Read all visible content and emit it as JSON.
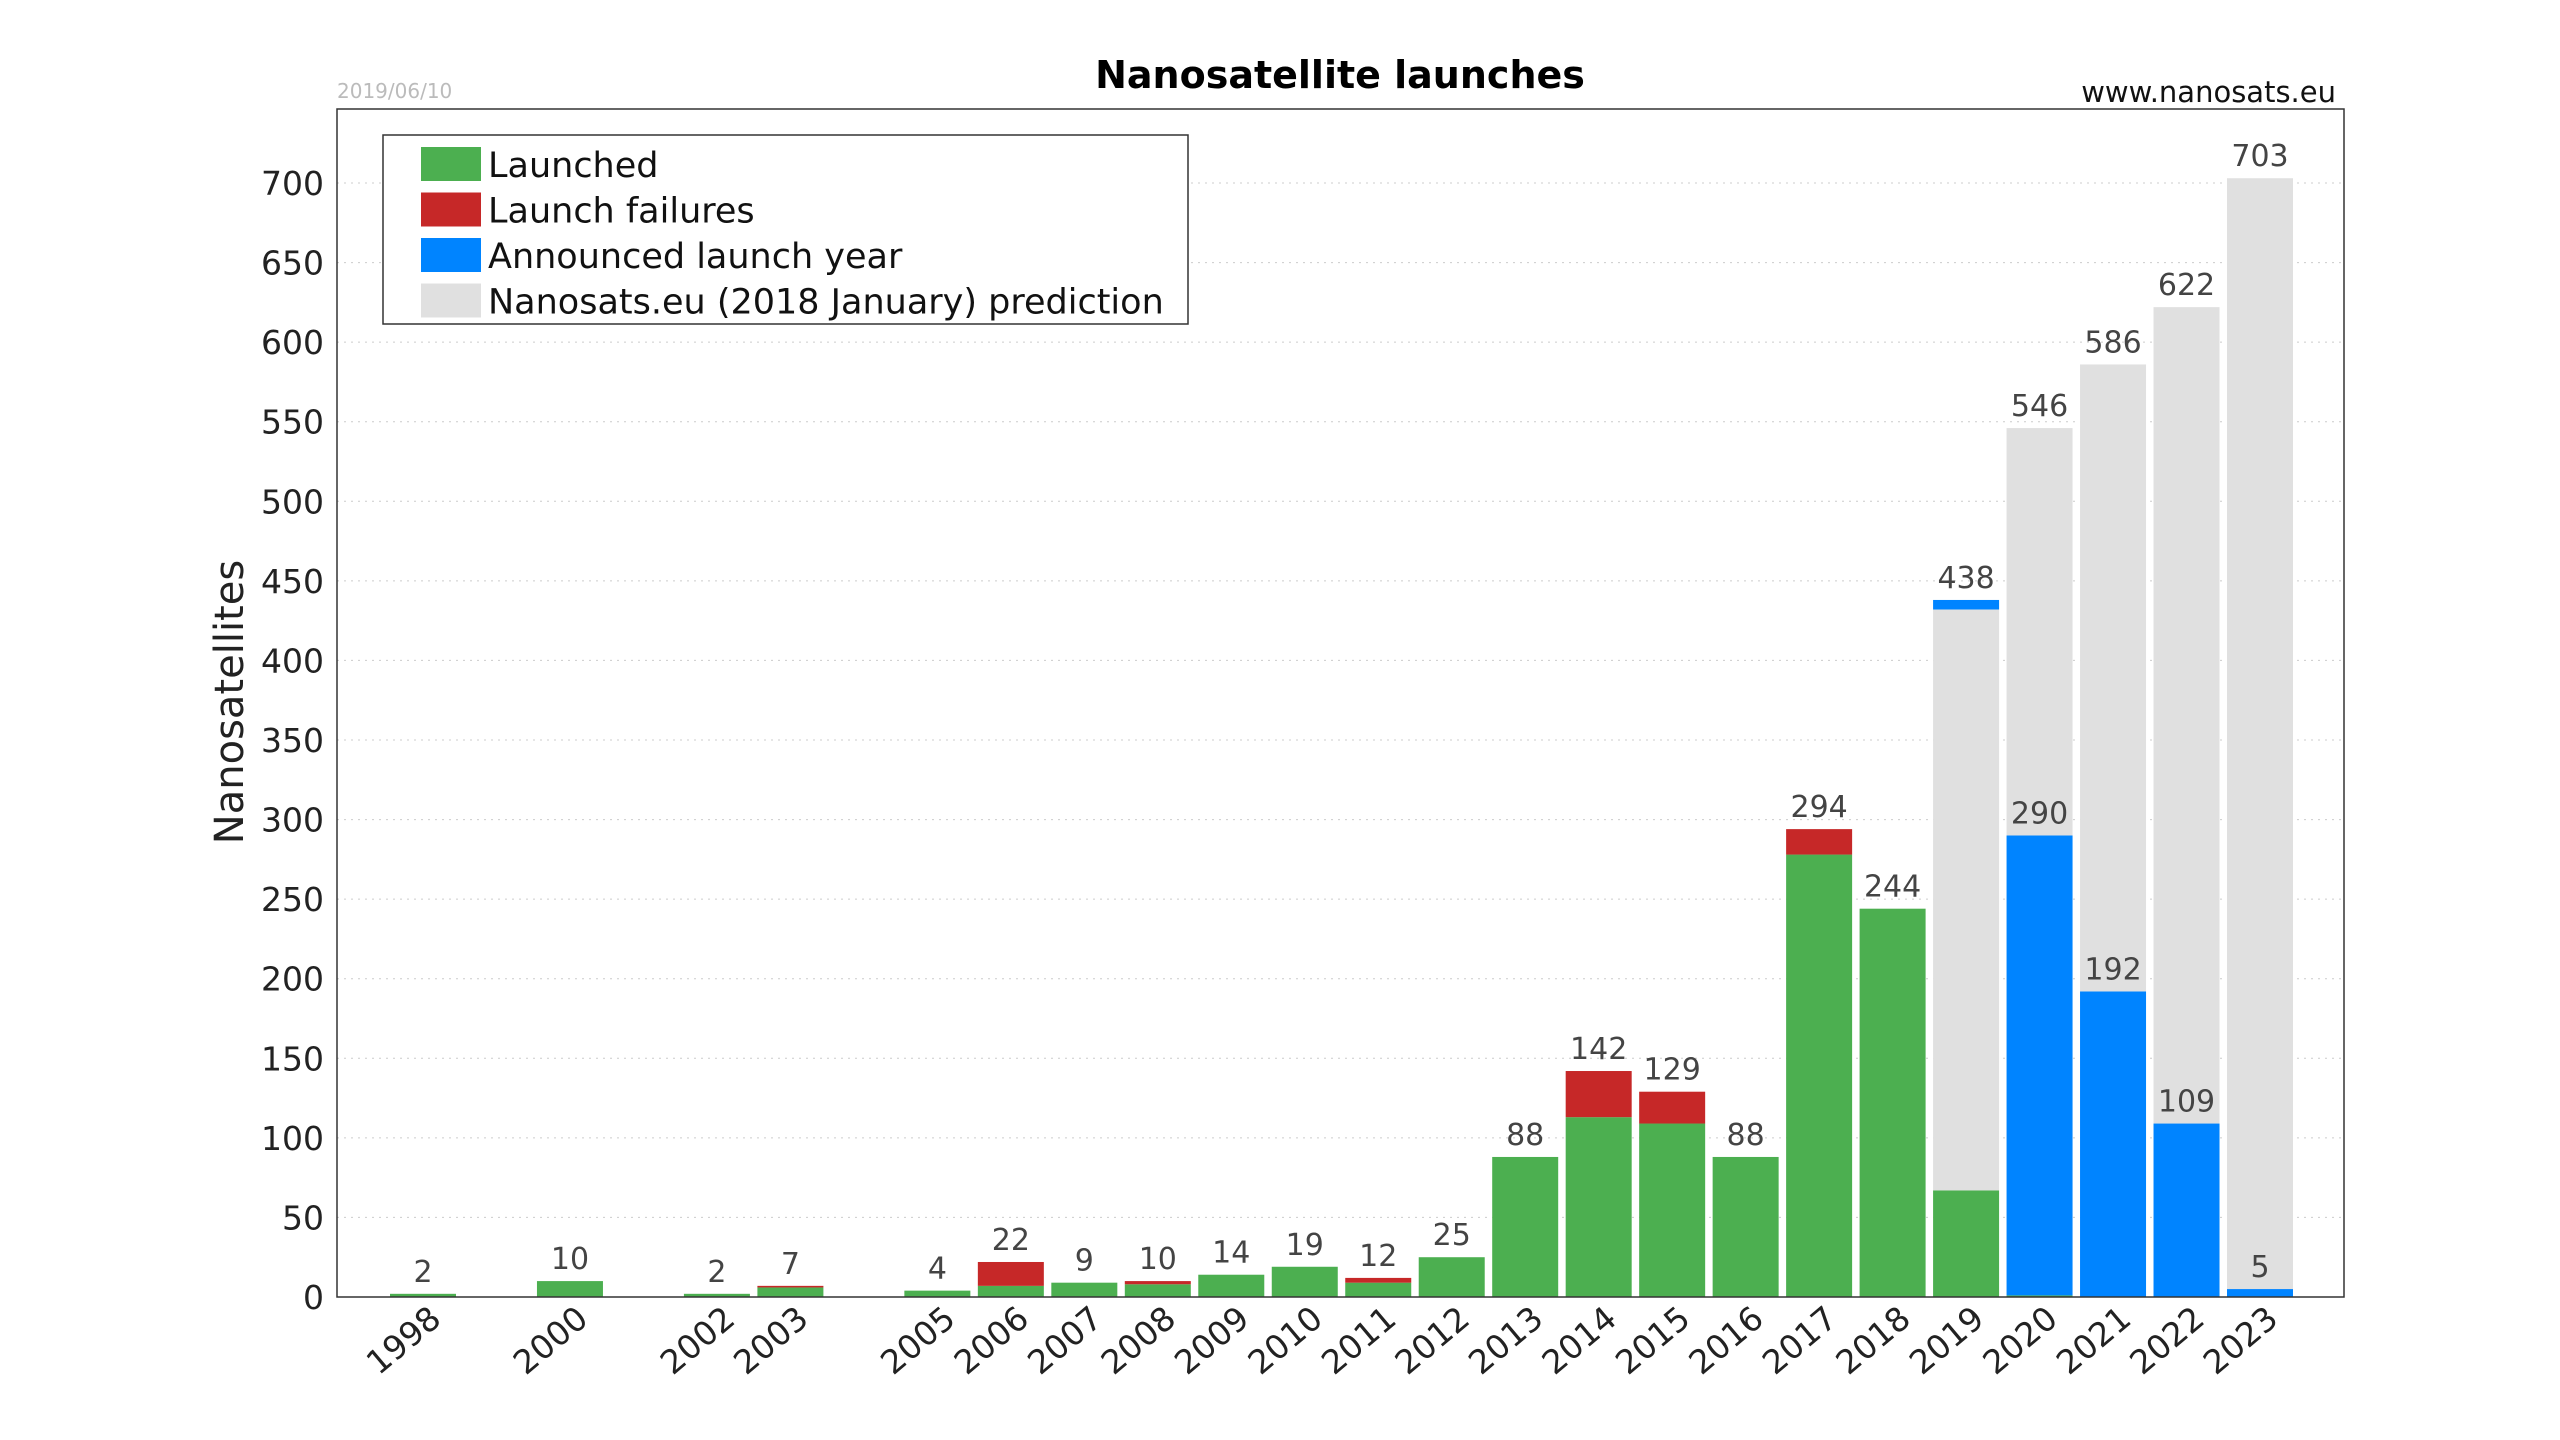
{
  "header": {
    "date": "2019/06/10",
    "website": "www.nanosats.eu"
  },
  "chart_data": {
    "type": "bar",
    "title": "Nanosatellite launches",
    "ylabel": "Nanosatellites",
    "xlabel": "",
    "ylim": [
      0,
      720
    ],
    "yticks": [
      0,
      50,
      100,
      150,
      200,
      250,
      300,
      350,
      400,
      450,
      500,
      550,
      600,
      650,
      700
    ],
    "grid": true,
    "legend_position": "top-left",
    "colors": {
      "launched": "#4caf50",
      "failures": "#c62828",
      "announced": "#0084ff",
      "prediction": "#e0e0e0"
    },
    "legend": [
      {
        "key": "launched",
        "label": "Launched"
      },
      {
        "key": "failures",
        "label": "Launch failures"
      },
      {
        "key": "announced",
        "label": "Announced launch year"
      },
      {
        "key": "prediction",
        "label": "Nanosats.eu (2018 January) prediction"
      }
    ],
    "categories": [
      "1998",
      "2000",
      "2002",
      "2003",
      "2005",
      "2006",
      "2007",
      "2008",
      "2009",
      "2010",
      "2011",
      "2012",
      "2013",
      "2014",
      "2015",
      "2016",
      "2017",
      "2018",
      "2019",
      "2020",
      "2021",
      "2022",
      "2023"
    ],
    "bars": [
      {
        "segments": [
          [
            "launched",
            2
          ]
        ],
        "labels": [
          "2"
        ]
      },
      {
        "segments": [
          [
            "launched",
            10
          ]
        ],
        "labels": [
          "10"
        ]
      },
      {
        "segments": [
          [
            "launched",
            2
          ]
        ],
        "labels": [
          "2"
        ]
      },
      {
        "segments": [
          [
            "launched",
            6
          ],
          [
            "failures",
            1
          ]
        ],
        "labels": [
          "7"
        ]
      },
      {
        "segments": [
          [
            "launched",
            4
          ]
        ],
        "labels": [
          "4"
        ]
      },
      {
        "segments": [
          [
            "launched",
            7
          ],
          [
            "failures",
            15
          ]
        ],
        "labels": [
          "22"
        ]
      },
      {
        "segments": [
          [
            "launched",
            9
          ]
        ],
        "labels": [
          "9"
        ]
      },
      {
        "segments": [
          [
            "launched",
            8
          ],
          [
            "failures",
            2
          ]
        ],
        "labels": [
          "10"
        ]
      },
      {
        "segments": [
          [
            "launched",
            14
          ]
        ],
        "labels": [
          "14"
        ]
      },
      {
        "segments": [
          [
            "launched",
            19
          ]
        ],
        "labels": [
          "19"
        ]
      },
      {
        "segments": [
          [
            "launched",
            9
          ],
          [
            "failures",
            3
          ]
        ],
        "labels": [
          "12"
        ]
      },
      {
        "segments": [
          [
            "launched",
            25
          ]
        ],
        "labels": [
          "25"
        ]
      },
      {
        "segments": [
          [
            "launched",
            88
          ]
        ],
        "labels": [
          "88"
        ]
      },
      {
        "segments": [
          [
            "launched",
            113
          ],
          [
            "failures",
            29
          ]
        ],
        "labels": [
          "142"
        ]
      },
      {
        "segments": [
          [
            "launched",
            109
          ],
          [
            "failures",
            20
          ]
        ],
        "labels": [
          "129"
        ]
      },
      {
        "segments": [
          [
            "launched",
            88
          ]
        ],
        "labels": [
          "88"
        ]
      },
      {
        "segments": [
          [
            "launched",
            278
          ],
          [
            "failures",
            16
          ]
        ],
        "labels": [
          "294"
        ]
      },
      {
        "segments": [
          [
            "launched",
            244
          ]
        ],
        "labels": [
          "244"
        ]
      },
      {
        "segments": [
          [
            "launched",
            67
          ],
          [
            "prediction",
            365
          ],
          [
            "announced",
            6
          ]
        ],
        "labels": [
          "438"
        ]
      },
      {
        "segments": [
          [
            "launched",
            1
          ],
          [
            "announced",
            289
          ],
          [
            "prediction",
            256
          ]
        ],
        "labels": [
          "546",
          "290"
        ]
      },
      {
        "segments": [
          [
            "announced",
            192
          ],
          [
            "prediction",
            394
          ]
        ],
        "labels": [
          "586",
          "192"
        ]
      },
      {
        "segments": [
          [
            "announced",
            109
          ],
          [
            "prediction",
            513
          ]
        ],
        "labels": [
          "622",
          "109"
        ]
      },
      {
        "segments": [
          [
            "announced",
            5
          ],
          [
            "prediction",
            698
          ]
        ],
        "labels": [
          "703",
          "5"
        ]
      }
    ]
  }
}
